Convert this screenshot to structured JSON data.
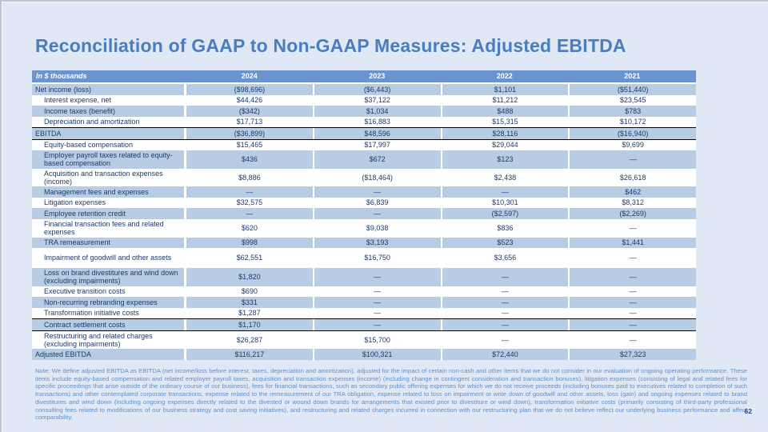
{
  "title": "Reconciliation of GAAP to Non-GAAP Measures: Adjusted EBITDA",
  "table": {
    "header": {
      "label": "In $ thousands",
      "years": [
        "2024",
        "2023",
        "2022",
        "2021"
      ]
    },
    "rows": [
      {
        "label": "Net income (loss)",
        "values": [
          "($98,696)",
          "($6,443)",
          "$1,101",
          "($51,440)"
        ],
        "band": true,
        "indent": false,
        "borders": false,
        "tall": false
      },
      {
        "label": "Interest expense, net",
        "values": [
          "$44,426",
          "$37,122",
          "$11,212",
          "$23,545"
        ],
        "band": false,
        "indent": true,
        "borders": false,
        "tall": false
      },
      {
        "label": "Income taxes (benefit)",
        "values": [
          "($342)",
          "$1,034",
          "$488",
          "$783"
        ],
        "band": true,
        "indent": true,
        "borders": false,
        "tall": false
      },
      {
        "label": "Depreciation and amortization",
        "values": [
          "$17,713",
          "$16,883",
          "$15,315",
          "$10,172"
        ],
        "band": false,
        "indent": true,
        "borders": false,
        "tall": false
      },
      {
        "label": "EBITDA",
        "values": [
          "($36,899)",
          "$48,596",
          "$28,116",
          "($16,940)"
        ],
        "band": true,
        "indent": false,
        "borders": true,
        "tall": false
      },
      {
        "label": "Equity-based compensation",
        "values": [
          "$15,465",
          "$17,997",
          "$29,044",
          "$9,699"
        ],
        "band": false,
        "indent": true,
        "borders": false,
        "tall": false
      },
      {
        "label": "Employer payroll taxes related to equity-based compensation",
        "values": [
          "$436",
          "$672",
          "$123",
          "—"
        ],
        "band": true,
        "indent": true,
        "borders": false,
        "tall": false
      },
      {
        "label": "Acquisition and transaction expenses (income)",
        "values": [
          "$8,886",
          "($18,464)",
          "$2,438",
          "$26,618"
        ],
        "band": false,
        "indent": true,
        "borders": false,
        "tall": false
      },
      {
        "label": "Management fees and expenses",
        "values": [
          "—",
          "—",
          "—",
          "$462"
        ],
        "band": true,
        "indent": true,
        "borders": false,
        "tall": false
      },
      {
        "label": "Litigation expenses",
        "values": [
          "$32,575",
          "$6,839",
          "$10,301",
          "$8,312"
        ],
        "band": false,
        "indent": true,
        "borders": false,
        "tall": false
      },
      {
        "label": "Employee retention credit",
        "values": [
          "—",
          "—",
          "($2,597)",
          "($2,269)"
        ],
        "band": true,
        "indent": true,
        "borders": false,
        "tall": false
      },
      {
        "label": "Financial transaction fees and related expenses",
        "values": [
          "$620",
          "$9,038",
          "$836",
          "—"
        ],
        "band": false,
        "indent": true,
        "borders": false,
        "tall": false
      },
      {
        "label": "TRA remeasurement",
        "values": [
          "$998",
          "$3,193",
          "$523",
          "$1,441"
        ],
        "band": true,
        "indent": true,
        "borders": false,
        "tall": false
      },
      {
        "label": "Impairment of goodwill and other assets",
        "values": [
          "$62,551",
          "$16,750",
          "$3,656",
          "—"
        ],
        "band": false,
        "indent": true,
        "borders": false,
        "tall": true
      },
      {
        "label": "Loss on brand divestitures and wind down (excluding impairments)",
        "values": [
          "$1,820",
          "—",
          "—",
          "—"
        ],
        "band": true,
        "indent": true,
        "borders": false,
        "tall": false
      },
      {
        "label": "Executive transition costs",
        "values": [
          "$690",
          "—",
          "—",
          "—"
        ],
        "band": false,
        "indent": true,
        "borders": false,
        "tall": false
      },
      {
        "label": "Non-recurring rebranding expenses",
        "values": [
          "$331",
          "—",
          "—",
          "—"
        ],
        "band": true,
        "indent": true,
        "borders": false,
        "tall": false
      },
      {
        "label": "Transformation initiative costs",
        "values": [
          "$1,287",
          "—",
          "—",
          "—"
        ],
        "band": false,
        "indent": true,
        "borders": false,
        "tall": false
      },
      {
        "label": "Contract settlement costs",
        "values": [
          "$1,170",
          "—",
          "—",
          "—"
        ],
        "band": true,
        "indent": true,
        "borders": true,
        "tall": false
      },
      {
        "label": "Restructuring and related charges (excluding impairments)",
        "values": [
          "$26,287",
          "$15,700",
          "—",
          "—"
        ],
        "band": false,
        "indent": true,
        "borders": false,
        "tall": false
      },
      {
        "label": "Adjusted EBITDA",
        "values": [
          "$116,217",
          "$100,321",
          "$72,440",
          "$27,323"
        ],
        "band": true,
        "indent": false,
        "borders": false,
        "tall": false
      }
    ]
  },
  "note": "Note: We define adjusted EBITDA as EBITDA (net income/loss before interest, taxes, depreciation and amortization), adjusted for the impact of certain non-cash and other items that we do not consider in our evaluation of ongoing operating performance. These items include equity-based compensation and related employer payroll taxes, acquisition and transaction expenses (income) (including change in contingent consideration and transaction bonuses), litigation expenses (consisting of legal and related fees for specific proceedings that arise outside of the ordinary course of our business), fees for financial transactions, such as secondary public offering expenses for which we do not receive proceeds (including bonuses paid to executives related to completion of such transactions) and other contemplated corporate transactions, expense related to the remeasurement of our TRA obligation, expense related to loss on impairment or write down of goodwill and other assets, loss (gain) and ongoing expenses related to brand divestitures and wind down (including ongoing expenses directly related to the divested or wound down brands for arrangements that existed prior to divestiture or wind down), transformation initiative costs (primarily consisting of third-party professional consulting fees related to modifications of our business strategy and cost saving initiatives), and restructuring and related charges incurred in connection with our restructuring plan that we do not believe reflect our underlying business performance and affect comparability.",
  "page_number": "62",
  "colors": {
    "background": "#dfe8f4",
    "header_bg": "#6b94cf",
    "band_bg": "#b8cce4",
    "table_text": "#1d3a68",
    "title_text": "#4b7dbe",
    "note_text": "#6290c9"
  }
}
